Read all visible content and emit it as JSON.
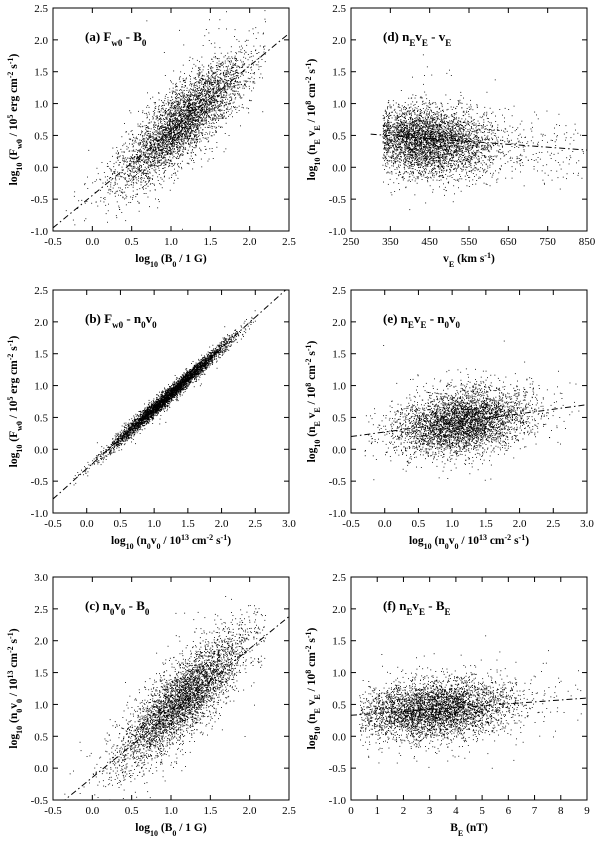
{
  "figure": {
    "background": "#ffffff",
    "point_color": "#000000",
    "fit_line_color": "#000000"
  },
  "chart_data": [
    {
      "id": "a",
      "type": "scatter",
      "panel_label": "(a)  F_w0 - B_0",
      "panel_label_parts": [
        [
          "(a)  F",
          ""
        ],
        [
          "w0",
          "sub"
        ],
        [
          " - B",
          ""
        ],
        [
          "0",
          "sub"
        ]
      ],
      "xlabel_parts": [
        [
          "log",
          ""
        ],
        [
          "10",
          "sub"
        ],
        [
          " (B",
          ""
        ],
        [
          "0",
          "sub"
        ],
        [
          " / 1 G)",
          ""
        ]
      ],
      "ylabel_parts": [
        [
          "log",
          ""
        ],
        [
          "10",
          "sub"
        ],
        [
          " (F",
          ""
        ],
        [
          "w0",
          "sub"
        ],
        [
          " / 10",
          ""
        ],
        [
          "5",
          "sup"
        ],
        [
          " erg cm",
          ""
        ],
        [
          "-2",
          "sup"
        ],
        [
          " s",
          ""
        ],
        [
          "-1",
          "sup"
        ],
        [
          ")",
          ""
        ]
      ],
      "xlim": [
        -0.5,
        2.5
      ],
      "ylim": [
        -1.0,
        2.5
      ],
      "xticks": [
        -0.5,
        0.0,
        0.5,
        1.0,
        1.5,
        2.0,
        2.5
      ],
      "xtick_labels": [
        "-0.5",
        "0.0",
        "0.5",
        "1.0",
        "1.5",
        "2.0",
        "2.5"
      ],
      "yticks": [
        -1.0,
        -0.5,
        0.0,
        0.5,
        1.0,
        1.5,
        2.0,
        2.5
      ],
      "ytick_labels": [
        "-1.0",
        "-0.5",
        "0.0",
        "0.5",
        "1.0",
        "1.5",
        "2.0",
        "2.5"
      ],
      "fit_line": {
        "x": [
          -0.5,
          2.5
        ],
        "y": [
          -0.95,
          2.1
        ],
        "style": "dashed"
      },
      "point_cloud": {
        "n": 4200,
        "x_mean": 1.15,
        "x_sd": 0.42,
        "x_range": [
          -0.4,
          2.2
        ],
        "slope": 1.02,
        "intercept": -0.45,
        "y_sd": 0.28
      }
    },
    {
      "id": "d",
      "type": "scatter",
      "panel_label": "(d)  n_E v_E - v_E",
      "panel_label_parts": [
        [
          "(d)  n",
          ""
        ],
        [
          "E",
          "sub"
        ],
        [
          "v",
          ""
        ],
        [
          "E",
          "sub"
        ],
        [
          " - v",
          ""
        ],
        [
          "E",
          "sub"
        ]
      ],
      "xlabel_parts": [
        [
          "v",
          ""
        ],
        [
          "E",
          "sub"
        ],
        [
          " (km s",
          ""
        ],
        [
          "-1",
          "sup"
        ],
        [
          ")",
          ""
        ]
      ],
      "ylabel_parts": [
        [
          "log",
          ""
        ],
        [
          "10",
          "sub"
        ],
        [
          " (n",
          ""
        ],
        [
          "E",
          "sub"
        ],
        [
          " v",
          ""
        ],
        [
          "E",
          "sub"
        ],
        [
          " / 10",
          ""
        ],
        [
          "8",
          "sup"
        ],
        [
          " cm",
          ""
        ],
        [
          "-2",
          "sup"
        ],
        [
          " s",
          ""
        ],
        [
          "-1",
          "sup"
        ],
        [
          ")",
          ""
        ]
      ],
      "xlim": [
        250,
        850
      ],
      "ylim": [
        -1.0,
        2.5
      ],
      "xticks": [
        250,
        350,
        450,
        550,
        650,
        750,
        850
      ],
      "xtick_labels": [
        "250",
        "350",
        "450",
        "550",
        "650",
        "750",
        "850"
      ],
      "yticks": [
        -1.0,
        -0.5,
        0.0,
        0.5,
        1.0,
        1.5,
        2.0,
        2.5
      ],
      "ytick_labels": [
        "-1.0",
        "-0.5",
        "0.0",
        "0.5",
        "1.0",
        "1.5",
        "2.0",
        "2.5"
      ],
      "fit_line": {
        "x": [
          300,
          850
        ],
        "y": [
          0.52,
          0.27
        ],
        "style": "dashed"
      },
      "point_cloud": {
        "n": 4200,
        "x_mean": 440,
        "x_sd": 85,
        "x_range": [
          330,
          840
        ],
        "slope": -0.00045,
        "intercept": 0.62,
        "y_sd": 0.26
      }
    },
    {
      "id": "b",
      "type": "scatter",
      "panel_label": "(b)  F_w0 - n_0 v_0",
      "panel_label_parts": [
        [
          "(b)  F",
          ""
        ],
        [
          "w0",
          "sub"
        ],
        [
          " - n",
          ""
        ],
        [
          "0",
          "sub"
        ],
        [
          "v",
          ""
        ],
        [
          "0",
          "sub"
        ]
      ],
      "xlabel_parts": [
        [
          "log",
          ""
        ],
        [
          "10",
          "sub"
        ],
        [
          " (n",
          ""
        ],
        [
          "0",
          "sub"
        ],
        [
          "v",
          ""
        ],
        [
          "0",
          "sub"
        ],
        [
          " / 10",
          ""
        ],
        [
          "13",
          "sup"
        ],
        [
          " cm",
          ""
        ],
        [
          "-2",
          "sup"
        ],
        [
          " s",
          ""
        ],
        [
          "-1",
          "sup"
        ],
        [
          ")",
          ""
        ]
      ],
      "ylabel_parts": [
        [
          "log",
          ""
        ],
        [
          "10",
          "sub"
        ],
        [
          " (F",
          ""
        ],
        [
          "w0",
          "sub"
        ],
        [
          " / 10",
          ""
        ],
        [
          "5",
          "sup"
        ],
        [
          " erg cm",
          ""
        ],
        [
          "-2",
          "sup"
        ],
        [
          " s",
          ""
        ],
        [
          "-1",
          "sup"
        ],
        [
          ")",
          ""
        ]
      ],
      "xlim": [
        -0.5,
        3.0
      ],
      "ylim": [
        -1.0,
        2.5
      ],
      "xticks": [
        -0.5,
        0.0,
        0.5,
        1.0,
        1.5,
        2.0,
        2.5,
        3.0
      ],
      "xtick_labels": [
        "-0.5",
        "0.0",
        "0.5",
        "1.0",
        "1.5",
        "2.0",
        "2.5",
        "3.0"
      ],
      "yticks": [
        -1.0,
        -0.5,
        0.0,
        0.5,
        1.0,
        1.5,
        2.0,
        2.5
      ],
      "ytick_labels": [
        "-1.0",
        "-0.5",
        "0.0",
        "0.5",
        "1.0",
        "1.5",
        "2.0",
        "2.5"
      ],
      "fit_line": {
        "x": [
          -0.5,
          2.95
        ],
        "y": [
          -0.78,
          2.5
        ],
        "style": "dashed"
      },
      "point_cloud": {
        "n": 4200,
        "x_mean": 1.2,
        "x_sd": 0.45,
        "x_range": [
          -0.2,
          2.5
        ],
        "slope": 0.95,
        "intercept": -0.3,
        "y_sd": 0.06
      }
    },
    {
      "id": "e",
      "type": "scatter",
      "panel_label": "(e)  n_E v_E - n_0 v_0",
      "panel_label_parts": [
        [
          "(e)  n",
          ""
        ],
        [
          "E",
          "sub"
        ],
        [
          "v",
          ""
        ],
        [
          "E",
          "sub"
        ],
        [
          " - n",
          ""
        ],
        [
          "0",
          "sub"
        ],
        [
          "v",
          ""
        ],
        [
          "0",
          "sub"
        ]
      ],
      "xlabel_parts": [
        [
          "log",
          ""
        ],
        [
          "10",
          "sub"
        ],
        [
          " (n",
          ""
        ],
        [
          "0",
          "sub"
        ],
        [
          "v",
          ""
        ],
        [
          "0",
          "sub"
        ],
        [
          " / 10",
          ""
        ],
        [
          "13",
          "sup"
        ],
        [
          " cm",
          ""
        ],
        [
          "-2",
          "sup"
        ],
        [
          " s",
          ""
        ],
        [
          "-1",
          "sup"
        ],
        [
          ")",
          ""
        ]
      ],
      "ylabel_parts": [
        [
          "log",
          ""
        ],
        [
          "10",
          "sub"
        ],
        [
          " (n",
          ""
        ],
        [
          "E",
          "sub"
        ],
        [
          " v",
          ""
        ],
        [
          "E",
          "sub"
        ],
        [
          " / 10",
          ""
        ],
        [
          "8",
          "sup"
        ],
        [
          " cm",
          ""
        ],
        [
          "-2",
          "sup"
        ],
        [
          " s",
          ""
        ],
        [
          "-1",
          "sup"
        ],
        [
          ")",
          ""
        ]
      ],
      "xlim": [
        -0.5,
        3.0
      ],
      "ylim": [
        -1.0,
        2.5
      ],
      "xticks": [
        -0.5,
        0.0,
        0.5,
        1.0,
        1.5,
        2.0,
        2.5,
        3.0
      ],
      "xtick_labels": [
        "-0.5",
        "0.0",
        "0.5",
        "1.0",
        "1.5",
        "2.0",
        "2.5",
        "3.0"
      ],
      "yticks": [
        -1.0,
        -0.5,
        0.0,
        0.5,
        1.0,
        1.5,
        2.0,
        2.5
      ],
      "ytick_labels": [
        "-1.0",
        "-0.5",
        "0.0",
        "0.5",
        "1.0",
        "1.5",
        "2.0",
        "2.5"
      ],
      "fit_line": {
        "x": [
          -0.5,
          3.0
        ],
        "y": [
          0.2,
          0.7
        ],
        "style": "dashed"
      },
      "point_cloud": {
        "n": 4200,
        "x_mean": 1.15,
        "x_sd": 0.5,
        "x_range": [
          -0.3,
          2.9
        ],
        "slope": 0.14,
        "intercept": 0.28,
        "y_sd": 0.24
      }
    },
    {
      "id": "c",
      "type": "scatter",
      "panel_label": "(c)  n_0 v_0 - B_0",
      "panel_label_parts": [
        [
          "(c)  n",
          ""
        ],
        [
          "0",
          "sub"
        ],
        [
          "v",
          ""
        ],
        [
          "0",
          "sub"
        ],
        [
          " - B",
          ""
        ],
        [
          "0",
          "sub"
        ]
      ],
      "xlabel_parts": [
        [
          "log",
          ""
        ],
        [
          "10",
          "sub"
        ],
        [
          " (B",
          ""
        ],
        [
          "0",
          "sub"
        ],
        [
          " / 1 G)",
          ""
        ]
      ],
      "ylabel_parts": [
        [
          "log",
          ""
        ],
        [
          "10",
          "sub"
        ],
        [
          " (n",
          ""
        ],
        [
          "0",
          "sub"
        ],
        [
          "v",
          ""
        ],
        [
          "0",
          "sub"
        ],
        [
          " / 10",
          ""
        ],
        [
          "13",
          "sup"
        ],
        [
          " cm",
          ""
        ],
        [
          "-2",
          "sup"
        ],
        [
          " s",
          ""
        ],
        [
          "-1",
          "sup"
        ],
        [
          ")",
          ""
        ]
      ],
      "xlim": [
        -0.5,
        2.5
      ],
      "ylim": [
        -0.5,
        3.0
      ],
      "xticks": [
        -0.5,
        0.0,
        0.5,
        1.0,
        1.5,
        2.0,
        2.5
      ],
      "xtick_labels": [
        "-0.5",
        "0.0",
        "0.5",
        "1.0",
        "1.5",
        "2.0",
        "2.5"
      ],
      "yticks": [
        -0.5,
        0.0,
        0.5,
        1.0,
        1.5,
        2.0,
        2.5,
        3.0
      ],
      "ytick_labels": [
        "-0.5",
        "0.0",
        "0.5",
        "1.0",
        "1.5",
        "2.0",
        "2.5",
        "3.0"
      ],
      "fit_line": {
        "x": [
          -0.4,
          2.5
        ],
        "y": [
          -0.55,
          2.38
        ],
        "style": "dashed"
      },
      "point_cloud": {
        "n": 4200,
        "x_mean": 1.15,
        "x_sd": 0.42,
        "x_range": [
          -0.4,
          2.2
        ],
        "slope": 1.05,
        "intercept": -0.13,
        "y_sd": 0.29
      }
    },
    {
      "id": "f",
      "type": "scatter",
      "panel_label": "(f)  n_E v_E - B_E",
      "panel_label_parts": [
        [
          "(f)  n",
          ""
        ],
        [
          "E",
          "sub"
        ],
        [
          "v",
          ""
        ],
        [
          "E",
          "sub"
        ],
        [
          " - B",
          ""
        ],
        [
          "E",
          "sub"
        ]
      ],
      "xlabel_parts": [
        [
          "B",
          ""
        ],
        [
          "E",
          "sub"
        ],
        [
          " (nT)",
          ""
        ]
      ],
      "ylabel_parts": [
        [
          "log",
          ""
        ],
        [
          "10",
          "sub"
        ],
        [
          " (n",
          ""
        ],
        [
          "E",
          "sub"
        ],
        [
          " v",
          ""
        ],
        [
          "E",
          "sub"
        ],
        [
          " / 10",
          ""
        ],
        [
          "8",
          "sup"
        ],
        [
          " cm",
          ""
        ],
        [
          "-2",
          "sup"
        ],
        [
          " s",
          ""
        ],
        [
          "-1",
          "sup"
        ],
        [
          ")",
          ""
        ]
      ],
      "xlim": [
        0,
        9
      ],
      "ylim": [
        -1.0,
        2.5
      ],
      "xticks": [
        0,
        1,
        2,
        3,
        4,
        5,
        6,
        7,
        8,
        9
      ],
      "xtick_labels": [
        "0",
        "1",
        "2",
        "3",
        "4",
        "5",
        "6",
        "7",
        "8",
        "9"
      ],
      "yticks": [
        -1.0,
        -0.5,
        0.0,
        0.5,
        1.0,
        1.5,
        2.0,
        2.5
      ],
      "ytick_labels": [
        "-1.0",
        "-0.5",
        "0.0",
        "0.5",
        "1.0",
        "1.5",
        "2.0",
        "2.5"
      ],
      "fit_line": {
        "x": [
          0,
          9
        ],
        "y": [
          0.33,
          0.6
        ],
        "style": "dashed"
      },
      "point_cloud": {
        "n": 4200,
        "x_mean": 3.2,
        "x_sd": 1.5,
        "x_range": [
          0.3,
          8.8
        ],
        "slope": 0.03,
        "intercept": 0.33,
        "y_sd": 0.22
      }
    }
  ]
}
